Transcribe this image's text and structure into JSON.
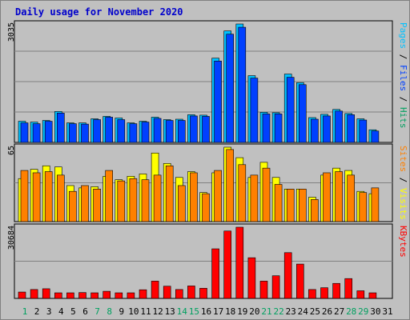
{
  "chart_data": {
    "type": "bar",
    "title": "Daily usage for November 2020",
    "x": [
      "1",
      "2",
      "3",
      "4",
      "5",
      "6",
      "7",
      "8",
      "9",
      "10",
      "11",
      "12",
      "13",
      "14",
      "15",
      "16",
      "17",
      "18",
      "19",
      "20",
      "21",
      "22",
      "23",
      "24",
      "25",
      "26",
      "27",
      "28",
      "29",
      "30",
      "31"
    ],
    "weekend_days": [
      "1",
      "7",
      "8",
      "14",
      "15",
      "21",
      "22",
      "28",
      "29"
    ],
    "panels": [
      {
        "scale_label": "3035",
        "axis_labels": [
          "Pages",
          "Files",
          "Hits"
        ],
        "series": [
          {
            "name": "Hits",
            "color": "#00c0ff",
            "values": [
              520,
              500,
              540,
              760,
              480,
              480,
              580,
              640,
              600,
              480,
              520,
              620,
              560,
              570,
              680,
              670,
              2070,
              2740,
              2910,
              1640,
              740,
              730,
              1680,
              1470,
              610,
              690,
              810,
              710,
              580,
              310,
              0
            ]
          },
          {
            "name": "Files",
            "color": "#0040ff",
            "values": [
              480,
              460,
              520,
              720,
              460,
              450,
              560,
              620,
              560,
              460,
              500,
              590,
              540,
              540,
              650,
              640,
              2000,
              2660,
              2830,
              1580,
              700,
              700,
              1600,
              1420,
              570,
              650,
              770,
              680,
              550,
              280,
              0
            ]
          }
        ]
      },
      {
        "scale_label": "65",
        "axis_labels": [
          "Sites",
          "Visits"
        ],
        "series": [
          {
            "name": "Visits",
            "color": "#ffff00",
            "values": [
              37,
              45,
              48,
              47,
              31,
              29,
              30,
              39,
              36,
              39,
              41,
              59,
              50,
              38,
              43,
              25,
              42,
              64,
              55,
              38,
              51,
              38,
              28,
              28,
              21,
              40,
              46,
              44,
              26,
              24,
              0
            ]
          },
          {
            "name": "Sites",
            "color": "#ff8000",
            "values": [
              44,
              42,
              43,
              40,
              26,
              31,
              28,
              44,
              35,
              37,
              36,
              40,
              48,
              31,
              42,
              24,
              44,
              62,
              49,
              40,
              46,
              32,
              28,
              28,
              19,
              42,
              43,
              40,
              25,
              29,
              0
            ]
          }
        ]
      },
      {
        "scale_label": "30684",
        "axis_labels": [
          "KBytes"
        ],
        "series": [
          {
            "name": "KBytes",
            "color": "#ff0000",
            "values": [
              2500,
              3500,
              3800,
              2200,
              2200,
              2300,
              2200,
              2800,
              2200,
              2200,
              3400,
              6800,
              4800,
              3500,
              4900,
              4000,
              19500,
              26500,
              28000,
              16000,
              6800,
              8900,
              18000,
              13500,
              3500,
              4200,
              5900,
              7800,
              3000,
              2200,
              0
            ]
          }
        ]
      }
    ]
  }
}
